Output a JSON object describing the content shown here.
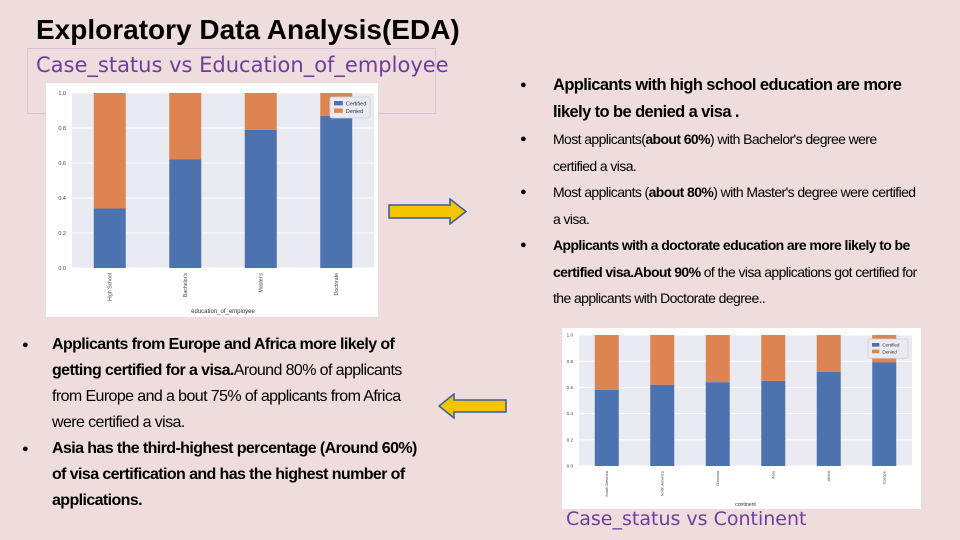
{
  "slide": {
    "title": "Exploratory Data Analysis(EDA)",
    "subtitle_education": "Case_status vs Education_of_employee",
    "subtitle_continent": "Case_status vs Continent"
  },
  "colors": {
    "certified": "#4c72b0",
    "denied": "#dd8452",
    "plot_bg": "#eaeaf2",
    "arrow_fill": "#f5c400",
    "arrow_stroke": "#3b5a9a"
  },
  "notes_education": [
    {
      "text": "Applicants with high school education are more likely to be denied  a visa .",
      "bold": true
    },
    {
      "text": "Most applicants(about 60%) with Bachelor's degree were certified a visa.",
      "bold": false
    },
    {
      "text": "Most applicants (about 80%) with Master's degree were certified a visa.",
      "bold": false
    },
    {
      "text": "Applicants with a doctorate education are more likely to be certified visa.About  90%  of the visa applications got certified for the applicants  with Doctorate degree..",
      "bold": false
    }
  ],
  "notes_continent": [
    {
      "text": "Applicants  from Europe and Africa more likely of getting certified  for a visa.Around   80% of applicants  from Europe and  a bout 75% of applicants  from Africa were certified  a  visa."
    },
    {
      "text": "Asia has the third-highest percentage (Around 60%) of visa certification and has the highest number of applications."
    }
  ],
  "chart_data": [
    {
      "type": "bar",
      "stacked": true,
      "xlabel": "education_of_employee",
      "ylabel": "",
      "ylim": [
        0,
        1.0
      ],
      "yticks": [
        "0.0",
        "0.2",
        "0.4",
        "0.6",
        "0.8",
        "1.0"
      ],
      "grid": true,
      "legend": "top-right",
      "categories": [
        "High School",
        "Bachelor's",
        "Master's",
        "Doctorate"
      ],
      "series": [
        {
          "name": "Certified",
          "values": [
            0.34,
            0.62,
            0.79,
            0.87
          ]
        },
        {
          "name": "Denied",
          "values": [
            0.66,
            0.38,
            0.21,
            0.13
          ]
        }
      ]
    },
    {
      "type": "bar",
      "stacked": true,
      "xlabel": "continent",
      "ylabel": "",
      "ylim": [
        0,
        1.0
      ],
      "yticks": [
        "0.0",
        "0.2",
        "0.4",
        "0.6",
        "0.8",
        "1.0"
      ],
      "grid": true,
      "legend": "top-right",
      "categories": [
        "South America",
        "North America",
        "Oceania",
        "Asia",
        "Africa",
        "Europe"
      ],
      "series": [
        {
          "name": "Certified",
          "values": [
            0.58,
            0.62,
            0.64,
            0.65,
            0.72,
            0.79
          ]
        },
        {
          "name": "Denied",
          "values": [
            0.42,
            0.38,
            0.36,
            0.35,
            0.28,
            0.21
          ]
        }
      ]
    }
  ]
}
